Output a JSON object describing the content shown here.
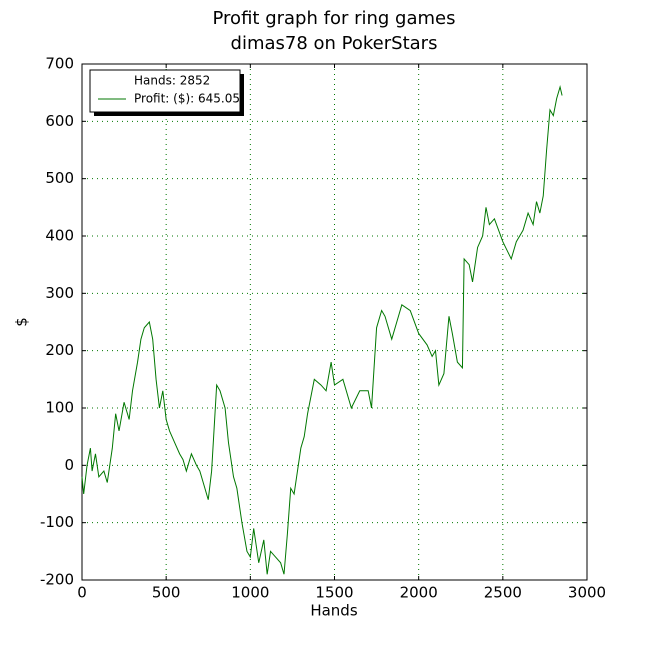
{
  "chart_data": {
    "type": "line",
    "title": "Profit graph for ring games",
    "subtitle": "dimas78 on PokerStars",
    "x_label": "Hands",
    "y_label": "$",
    "legend_title": "Hands: 2852",
    "legend_position": "upper left",
    "grid": true,
    "xlim": [
      0,
      3000
    ],
    "xticks": [
      0,
      500,
      1000,
      1500,
      2000,
      2500,
      3000
    ],
    "ylim": [
      -200,
      700
    ],
    "yticks": [
      -200,
      -100,
      0,
      100,
      200,
      300,
      400,
      500,
      600,
      700
    ],
    "x": [
      0,
      10,
      30,
      50,
      60,
      80,
      100,
      130,
      150,
      180,
      200,
      220,
      250,
      280,
      300,
      330,
      350,
      370,
      400,
      420,
      440,
      460,
      480,
      500,
      520,
      550,
      580,
      600,
      620,
      650,
      680,
      700,
      720,
      750,
      770,
      800,
      820,
      850,
      870,
      900,
      920,
      950,
      980,
      1000,
      1020,
      1050,
      1080,
      1100,
      1120,
      1150,
      1180,
      1200,
      1220,
      1240,
      1260,
      1280,
      1300,
      1320,
      1340,
      1380,
      1420,
      1450,
      1480,
      1500,
      1550,
      1600,
      1650,
      1700,
      1720,
      1750,
      1780,
      1800,
      1840,
      1880,
      1900,
      1950,
      2000,
      2050,
      2080,
      2100,
      2120,
      2150,
      2180,
      2200,
      2230,
      2260,
      2270,
      2300,
      2320,
      2350,
      2380,
      2400,
      2420,
      2450,
      2500,
      2550,
      2580,
      2600,
      2620,
      2650,
      2680,
      2700,
      2720,
      2740,
      2760,
      2780,
      2800,
      2820,
      2840,
      2852
    ],
    "series": [
      {
        "name": "Profit: ($): 645.05",
        "color": "#007700",
        "values": [
          -20,
          -50,
          0,
          30,
          -10,
          20,
          -20,
          -10,
          -30,
          30,
          90,
          60,
          110,
          80,
          130,
          180,
          220,
          240,
          250,
          220,
          150,
          100,
          130,
          80,
          60,
          40,
          20,
          10,
          -10,
          20,
          0,
          -10,
          -30,
          -60,
          -10,
          140,
          130,
          100,
          40,
          -20,
          -40,
          -100,
          -150,
          -160,
          -110,
          -170,
          -130,
          -190,
          -150,
          -160,
          -170,
          -190,
          -120,
          -40,
          -50,
          -10,
          30,
          50,
          90,
          150,
          140,
          130,
          180,
          140,
          150,
          100,
          130,
          130,
          100,
          240,
          270,
          260,
          220,
          260,
          280,
          270,
          230,
          210,
          190,
          200,
          140,
          160,
          260,
          230,
          180,
          170,
          360,
          350,
          320,
          380,
          400,
          450,
          420,
          430,
          390,
          360,
          390,
          400,
          410,
          440,
          420,
          460,
          440,
          470,
          550,
          620,
          610,
          640,
          660,
          645
        ]
      }
    ]
  }
}
